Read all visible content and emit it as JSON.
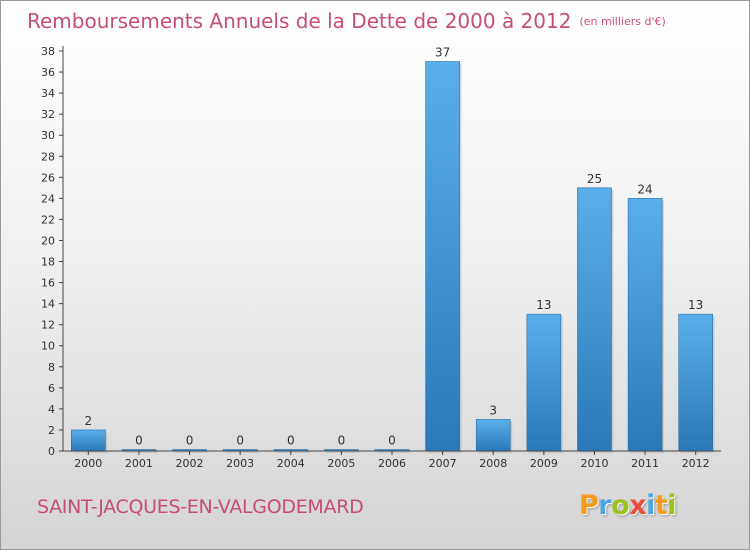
{
  "title": "Remboursements Annuels de la Dette de 2000 à 2012",
  "unit": "(en milliers d'€)",
  "commune": "SAINT-JACQUES-EN-VALGODEMARD",
  "logo": {
    "text": "Proxiti",
    "letters": [
      {
        "char": "P",
        "color": "#f39c1f"
      },
      {
        "char": "r",
        "color": "#4da6e0"
      },
      {
        "char": "o",
        "color": "#9bc31f"
      },
      {
        "char": "x",
        "color": "#e94e3c"
      },
      {
        "char": "i",
        "color": "#4da6e0"
      },
      {
        "char": "t",
        "color": "#f39c1f"
      },
      {
        "char": "i",
        "color": "#9bc31f"
      }
    ]
  },
  "colors": {
    "title": "#c64d79",
    "bar_light": "#5aafea",
    "bar_dark": "#2a78b8",
    "axis": "#444444",
    "tick_text": "#333333"
  },
  "chart_data": {
    "type": "bar",
    "categories": [
      "2000",
      "2001",
      "2002",
      "2003",
      "2004",
      "2005",
      "2006",
      "2007",
      "2008",
      "2009",
      "2010",
      "2011",
      "2012"
    ],
    "values": [
      2,
      0,
      0,
      0,
      0,
      0,
      0,
      37,
      3,
      13,
      25,
      24,
      13
    ],
    "data_labels": [
      "2",
      "0",
      "0",
      "0",
      "0",
      "0",
      "0",
      "37",
      "3",
      "13",
      "25",
      "24",
      "13"
    ],
    "ylim": [
      0,
      38
    ],
    "yticks": [
      0,
      2,
      4,
      6,
      8,
      10,
      12,
      14,
      16,
      18,
      20,
      22,
      24,
      26,
      28,
      30,
      32,
      34,
      36,
      38
    ],
    "grid": false,
    "legend": "none"
  }
}
